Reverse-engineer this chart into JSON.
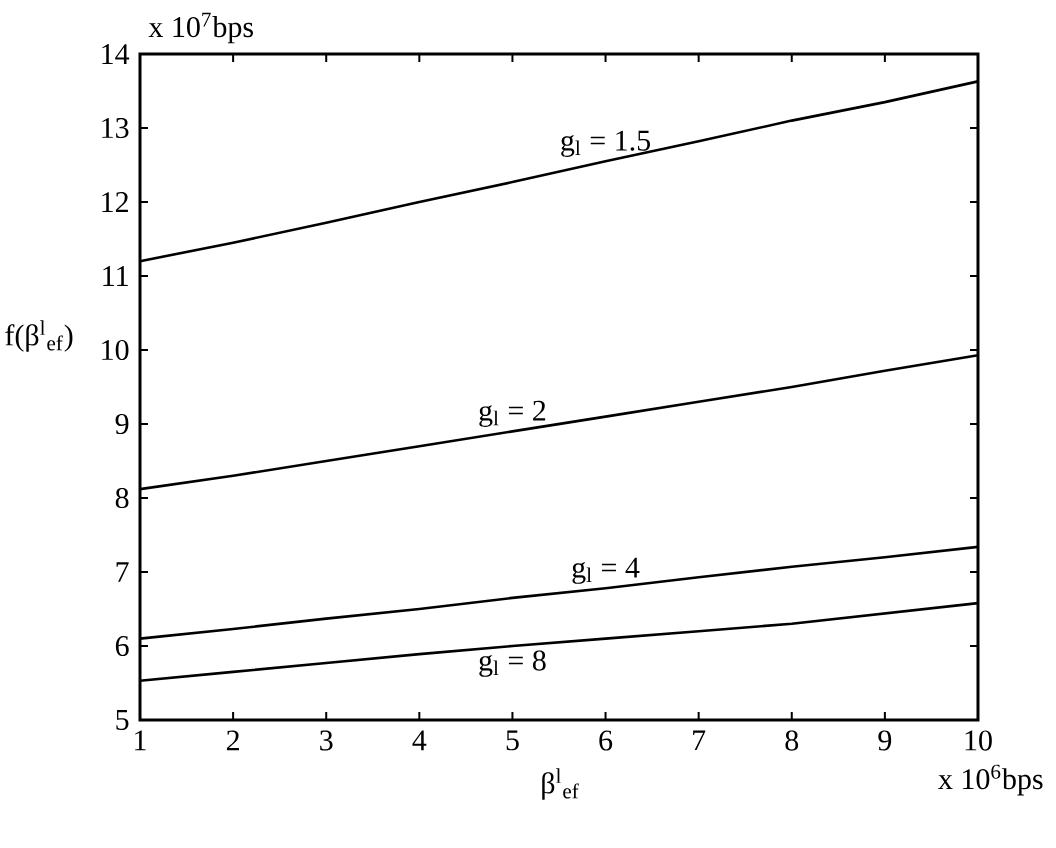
{
  "chart_data": {
    "type": "line",
    "xlabel": "β$^{l}$$_{ef}$",
    "ylabel": "f(β$^{l}$$_{ef}$)",
    "x": [
      1,
      2,
      3,
      4,
      5,
      6,
      7,
      8,
      9,
      10
    ],
    "series": [
      {
        "name": "g$_{l}$ = 1.5",
        "color": "#000000",
        "values": [
          11.2,
          11.45,
          11.72,
          12.0,
          12.27,
          12.55,
          12.82,
          13.1,
          13.35,
          13.63
        ]
      },
      {
        "name": "g$_{l}$ = 2",
        "color": "#000000",
        "values": [
          8.12,
          8.3,
          8.5,
          8.7,
          8.9,
          9.1,
          9.3,
          9.5,
          9.72,
          9.93
        ]
      },
      {
        "name": "g$_{l}$ = 4",
        "color": "#000000",
        "values": [
          6.1,
          6.23,
          6.37,
          6.5,
          6.65,
          6.78,
          6.93,
          7.07,
          7.2,
          7.34
        ]
      },
      {
        "name": "g$_{l}$ = 8",
        "color": "#000000",
        "values": [
          5.53,
          5.65,
          5.77,
          5.89,
          6.0,
          6.1,
          6.2,
          6.3,
          6.44,
          6.58
        ]
      }
    ],
    "xlim": [
      1,
      10
    ],
    "ylim": [
      5,
      14
    ],
    "xticks": [
      1,
      2,
      3,
      4,
      5,
      6,
      7,
      8,
      9,
      10
    ],
    "yticks": [
      5,
      6,
      7,
      8,
      9,
      10,
      11,
      12,
      13,
      14
    ],
    "annotations": [
      "x 10$^{7}$bps",
      "x 10$^{6}$bps"
    ]
  }
}
